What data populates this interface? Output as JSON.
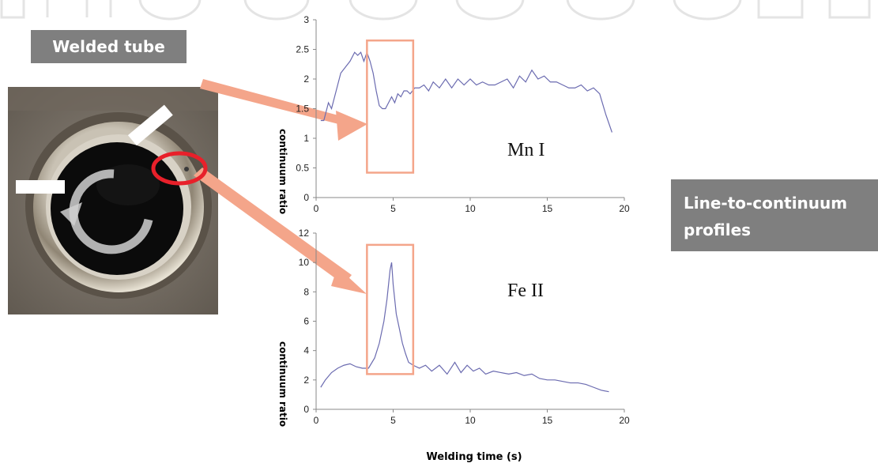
{
  "labels": {
    "welded_tube": "Welded tube",
    "profiles": "Line-to-continuum profiles"
  },
  "colors": {
    "series": "#6b6bb0",
    "window": "#f4a58a",
    "arrow": "#f4a58a",
    "label_bg": "#7f7f7f",
    "highlight_ring": "#e8202a"
  },
  "chart_data": [
    {
      "type": "line",
      "annotation": "Mn I",
      "ylabel": "continuum ratio",
      "xlim": [
        0,
        20
      ],
      "ylim": [
        0,
        3
      ],
      "xticks": [
        0,
        5,
        10,
        15,
        20
      ],
      "yticks": [
        0,
        0.5,
        1,
        1.5,
        2,
        2.5,
        3
      ],
      "ytick_labels": [
        "0",
        "0.5",
        "1",
        "1.5",
        "2",
        "2.5",
        "3"
      ],
      "window": [
        3.3,
        6.3
      ],
      "series": [
        {
          "x": [
            0.3,
            0.5,
            0.8,
            1.0,
            1.3,
            1.6,
            1.9,
            2.2,
            2.5,
            2.7,
            2.9,
            3.1,
            3.3,
            3.5,
            3.7,
            3.9,
            4.1,
            4.3,
            4.5,
            4.7,
            4.9,
            5.1,
            5.3,
            5.5,
            5.7,
            5.9,
            6.1,
            6.4,
            6.7,
            7.0,
            7.3,
            7.6,
            8.0,
            8.4,
            8.8,
            9.2,
            9.6,
            10.0,
            10.4,
            10.8,
            11.2,
            11.6,
            12.0,
            12.4,
            12.8,
            13.2,
            13.6,
            14.0,
            14.4,
            14.8,
            15.2,
            15.6,
            16.0,
            16.4,
            16.8,
            17.2,
            17.6,
            18.0,
            18.4,
            18.8,
            19.2
          ],
          "y": [
            1.3,
            1.3,
            1.6,
            1.5,
            1.8,
            2.1,
            2.2,
            2.3,
            2.45,
            2.4,
            2.45,
            2.3,
            2.45,
            2.3,
            2.1,
            1.8,
            1.55,
            1.5,
            1.5,
            1.6,
            1.7,
            1.6,
            1.75,
            1.7,
            1.8,
            1.8,
            1.75,
            1.85,
            1.85,
            1.9,
            1.8,
            1.95,
            1.85,
            2.0,
            1.85,
            2.0,
            1.9,
            2.0,
            1.9,
            1.95,
            1.9,
            1.9,
            1.95,
            2.0,
            1.85,
            2.05,
            1.95,
            2.15,
            2.0,
            2.05,
            1.95,
            1.95,
            1.9,
            1.85,
            1.85,
            1.9,
            1.8,
            1.85,
            1.75,
            1.4,
            1.1
          ]
        }
      ]
    },
    {
      "type": "line",
      "annotation": "Fe II",
      "ylabel": "continuum ratio",
      "xlabel": "Welding time (s)",
      "xlim": [
        0,
        20
      ],
      "ylim": [
        0,
        12
      ],
      "xticks": [
        0,
        5,
        10,
        15,
        20
      ],
      "yticks": [
        0,
        2,
        4,
        6,
        8,
        10,
        12
      ],
      "window": [
        3.3,
        6.3
      ],
      "series": [
        {
          "x": [
            0.3,
            0.6,
            1.0,
            1.4,
            1.8,
            2.2,
            2.6,
            3.0,
            3.4,
            3.8,
            4.1,
            4.4,
            4.6,
            4.8,
            4.9,
            5.0,
            5.2,
            5.4,
            5.6,
            5.8,
            6.0,
            6.3,
            6.7,
            7.1,
            7.5,
            8.0,
            8.5,
            9.0,
            9.4,
            9.8,
            10.2,
            10.6,
            11.0,
            11.5,
            12.0,
            12.5,
            13.0,
            13.5,
            14.0,
            14.5,
            15.0,
            15.5,
            16.0,
            16.5,
            17.0,
            17.5,
            18.0,
            18.5,
            19.0
          ],
          "y": [
            1.5,
            2.0,
            2.5,
            2.8,
            3.0,
            3.1,
            2.9,
            2.8,
            2.8,
            3.5,
            4.5,
            6.0,
            7.5,
            9.5,
            10.0,
            8.5,
            6.5,
            5.5,
            4.5,
            3.8,
            3.2,
            3.0,
            2.8,
            3.0,
            2.6,
            3.0,
            2.4,
            3.2,
            2.5,
            3.0,
            2.6,
            2.8,
            2.4,
            2.6,
            2.5,
            2.4,
            2.5,
            2.3,
            2.4,
            2.1,
            2.0,
            2.0,
            1.9,
            1.8,
            1.8,
            1.7,
            1.5,
            1.3,
            1.2
          ]
        }
      ]
    }
  ]
}
